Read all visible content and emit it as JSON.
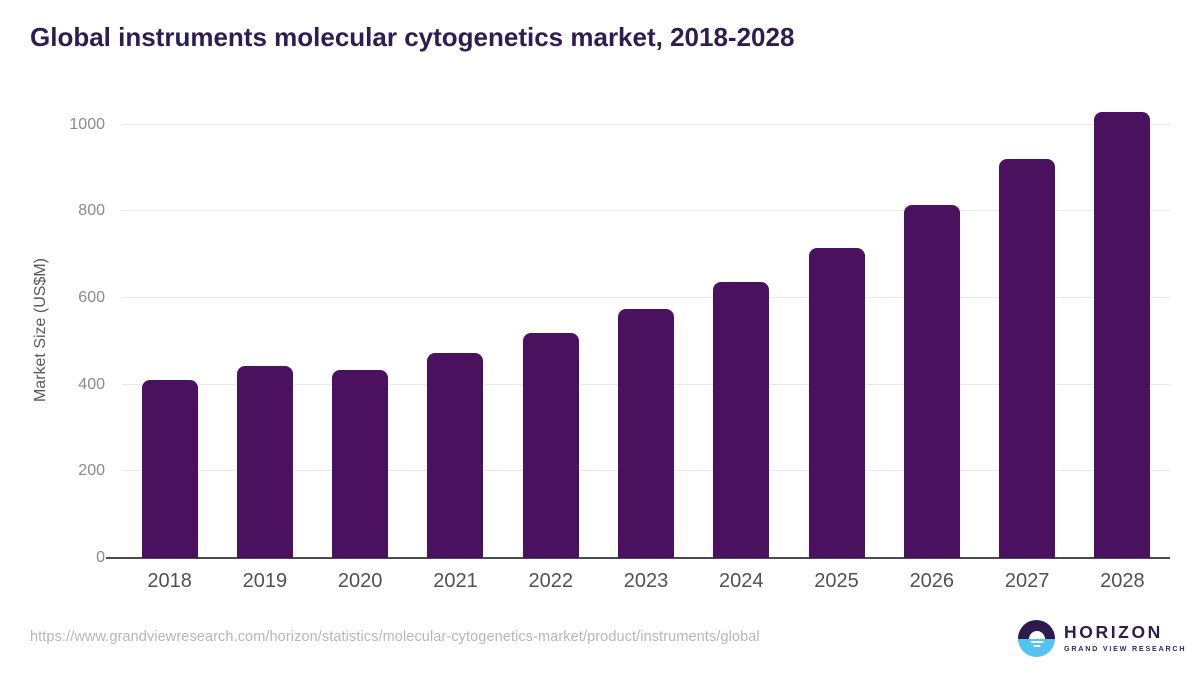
{
  "title": "Global instruments molecular cytogenetics market, 2018-2028",
  "footer": {
    "source_url": "https://www.grandviewresearch.com/horizon/statistics/molecular-cytogenetics-market/product/instruments/global",
    "logo_name": "HORIZON",
    "logo_subtitle": "GRAND VIEW RESEARCH"
  },
  "colors": {
    "bar": "#4a115e",
    "title_text": "#2e1d51",
    "gridline": "#e8e8e8",
    "axis_line": "#4c4c4c",
    "y_tick_text": "#8a8a8a",
    "x_tick_text": "#515151",
    "url_text": "#b6b6b6",
    "logo_dark": "#2d1b4e",
    "logo_blue": "#55c3f0"
  },
  "chart_data": {
    "type": "bar",
    "title": "Global instruments molecular cytogenetics market, 2018-2028",
    "categories": [
      "2018",
      "2019",
      "2020",
      "2021",
      "2022",
      "2023",
      "2024",
      "2025",
      "2026",
      "2027",
      "2028"
    ],
    "values": [
      411,
      442,
      433,
      472,
      519,
      574,
      638,
      715,
      814,
      920,
      1030
    ],
    "xlabel": "",
    "ylabel": "Market Size (US$M)",
    "ylim": [
      0,
      1057
    ],
    "yticks": [
      0,
      200,
      400,
      600,
      800,
      1000
    ],
    "grid": true,
    "legend": false,
    "bar_color": "#4a115e"
  }
}
